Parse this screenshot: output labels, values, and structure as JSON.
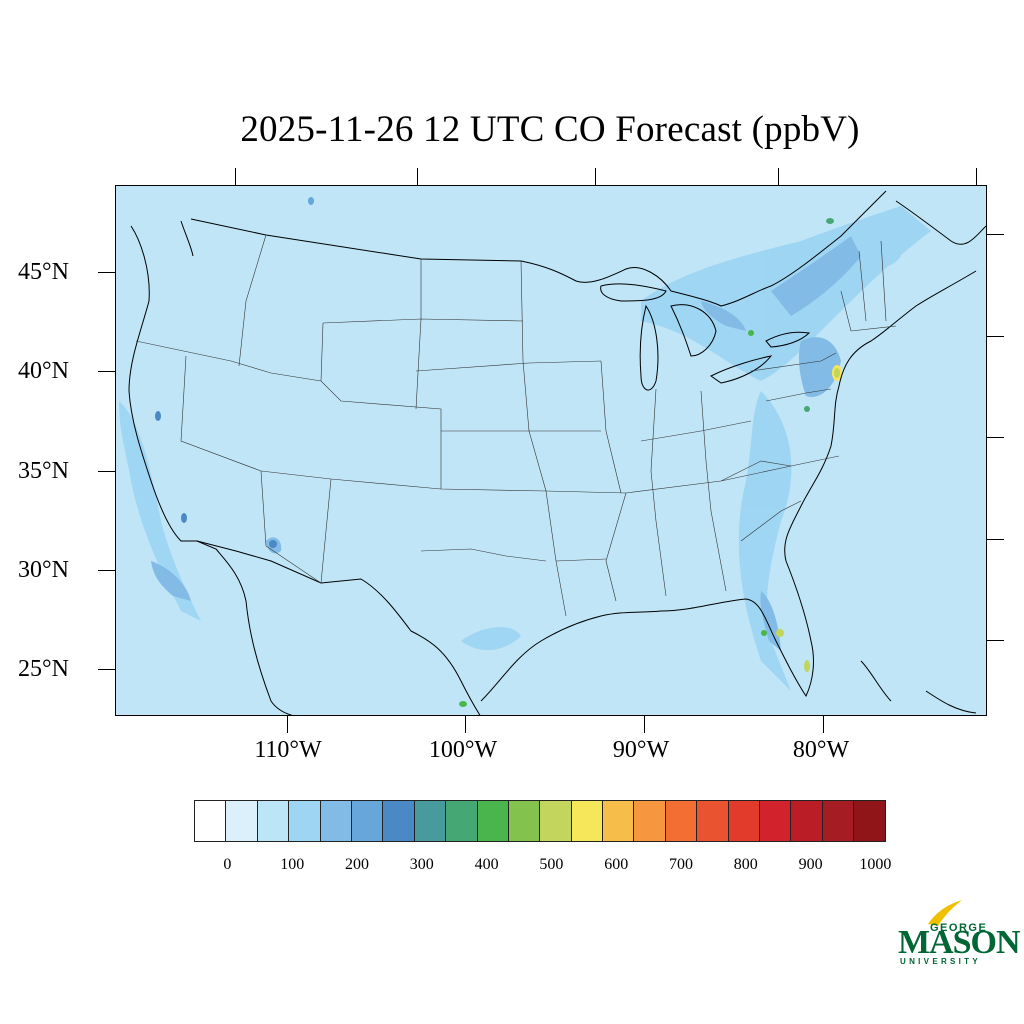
{
  "title": "2025-11-26 12 UTC CO Forecast (ppbV)",
  "lat_labels": [
    "45°N",
    "40°N",
    "35°N",
    "30°N",
    "25°N"
  ],
  "lon_labels": [
    "110°W",
    "100°W",
    "90°W",
    "80°W"
  ],
  "colorbar": {
    "colors": [
      "#ffffff",
      "#dcf0fb",
      "#bde5f8",
      "#9dd5f2",
      "#82bce6",
      "#67a6db",
      "#4a88c6",
      "#479b9c",
      "#45a874",
      "#49b54c",
      "#82c24d",
      "#c3d55c",
      "#f5e65a",
      "#f7bd4a",
      "#f6963e",
      "#f26e32",
      "#e95330",
      "#e23a2b",
      "#d2232c",
      "#ba1d26",
      "#a51c22",
      "#8f1518"
    ],
    "labels": [
      "0",
      "100",
      "200",
      "300",
      "400",
      "500",
      "600",
      "700",
      "800",
      "900",
      "1000"
    ]
  },
  "map": {
    "background_color": "#bfe5f7",
    "units": "ppbV"
  },
  "logo": {
    "george": "GEORGE",
    "mason": "MASON",
    "university": "UNIVERSITY"
  }
}
